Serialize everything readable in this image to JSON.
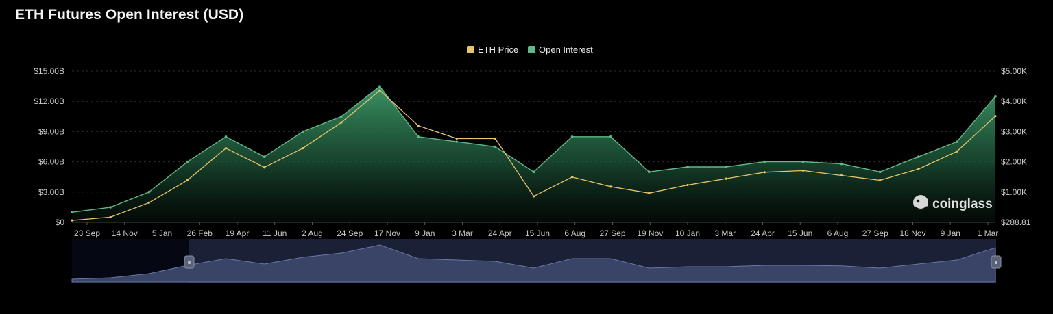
{
  "title": "ETH Futures Open Interest (USD)",
  "watermark": "coinglass",
  "colors": {
    "price": "#e8c46a",
    "oi": "#5fb98a",
    "background": "#000000",
    "navigator": "#3a4466"
  },
  "chart_data": {
    "type": "area",
    "title": "ETH Futures Open Interest (USD)",
    "legend": {
      "placement": "top-center",
      "entries": [
        "ETH Price",
        "Open Interest"
      ]
    },
    "grid": true,
    "x_ticks": [
      "23 Sep",
      "14 Nov",
      "5 Jan",
      "26 Feb",
      "19 Apr",
      "11 Jun",
      "2 Aug",
      "24 Sep",
      "17 Nov",
      "9 Jan",
      "3 Mar",
      "24 Apr",
      "15 Jun",
      "6 Aug",
      "27 Sep",
      "19 Nov",
      "10 Jan",
      "3 Mar",
      "24 Apr",
      "15 Jun",
      "6 Aug",
      "27 Sep",
      "18 Nov",
      "9 Jan",
      "1 Mar"
    ],
    "y_left": {
      "label": "",
      "ticks": [
        "$0",
        "$3.00B",
        "$6.00B",
        "$9.00B",
        "$12.00B",
        "$15.00B"
      ],
      "range": [
        0,
        15
      ]
    },
    "y_right": {
      "label": "",
      "ticks": [
        "$288.81",
        "$1.00K",
        "$2.00K",
        "$3.00K",
        "$4.00K",
        "$5.00K"
      ],
      "range": [
        0.28881,
        5.0
      ]
    },
    "x": [
      "23 Sep",
      "14 Nov",
      "5 Jan",
      "26 Feb",
      "19 Apr",
      "11 Jun",
      "2 Aug",
      "24 Sep",
      "17 Nov",
      "9 Jan",
      "3 Mar",
      "24 Apr",
      "15 Jun",
      "6 Aug",
      "27 Sep",
      "19 Nov",
      "10 Jan",
      "3 Mar",
      "24 Apr",
      "15 Jun",
      "6 Aug",
      "27 Sep",
      "18 Nov",
      "9 Jan",
      "1 Mar"
    ],
    "series": [
      {
        "name": "Open Interest",
        "axis": "left",
        "unit": "B USD",
        "values": [
          1.0,
          1.5,
          3.0,
          6.0,
          8.5,
          6.5,
          9.0,
          10.5,
          13.5,
          8.5,
          8.0,
          7.5,
          5.0,
          8.5,
          8.5,
          5.0,
          5.5,
          5.5,
          6.0,
          6.0,
          5.8,
          5.0,
          6.5,
          8.0,
          12.5
        ]
      },
      {
        "name": "ETH Price",
        "axis": "right",
        "unit": "K USD",
        "values": [
          0.35,
          0.45,
          0.9,
          1.6,
          2.6,
          2.0,
          2.6,
          3.4,
          4.4,
          3.3,
          2.9,
          2.9,
          1.1,
          1.7,
          1.4,
          1.2,
          1.45,
          1.65,
          1.85,
          1.9,
          1.75,
          1.6,
          1.95,
          2.5,
          3.6
        ]
      }
    ]
  }
}
